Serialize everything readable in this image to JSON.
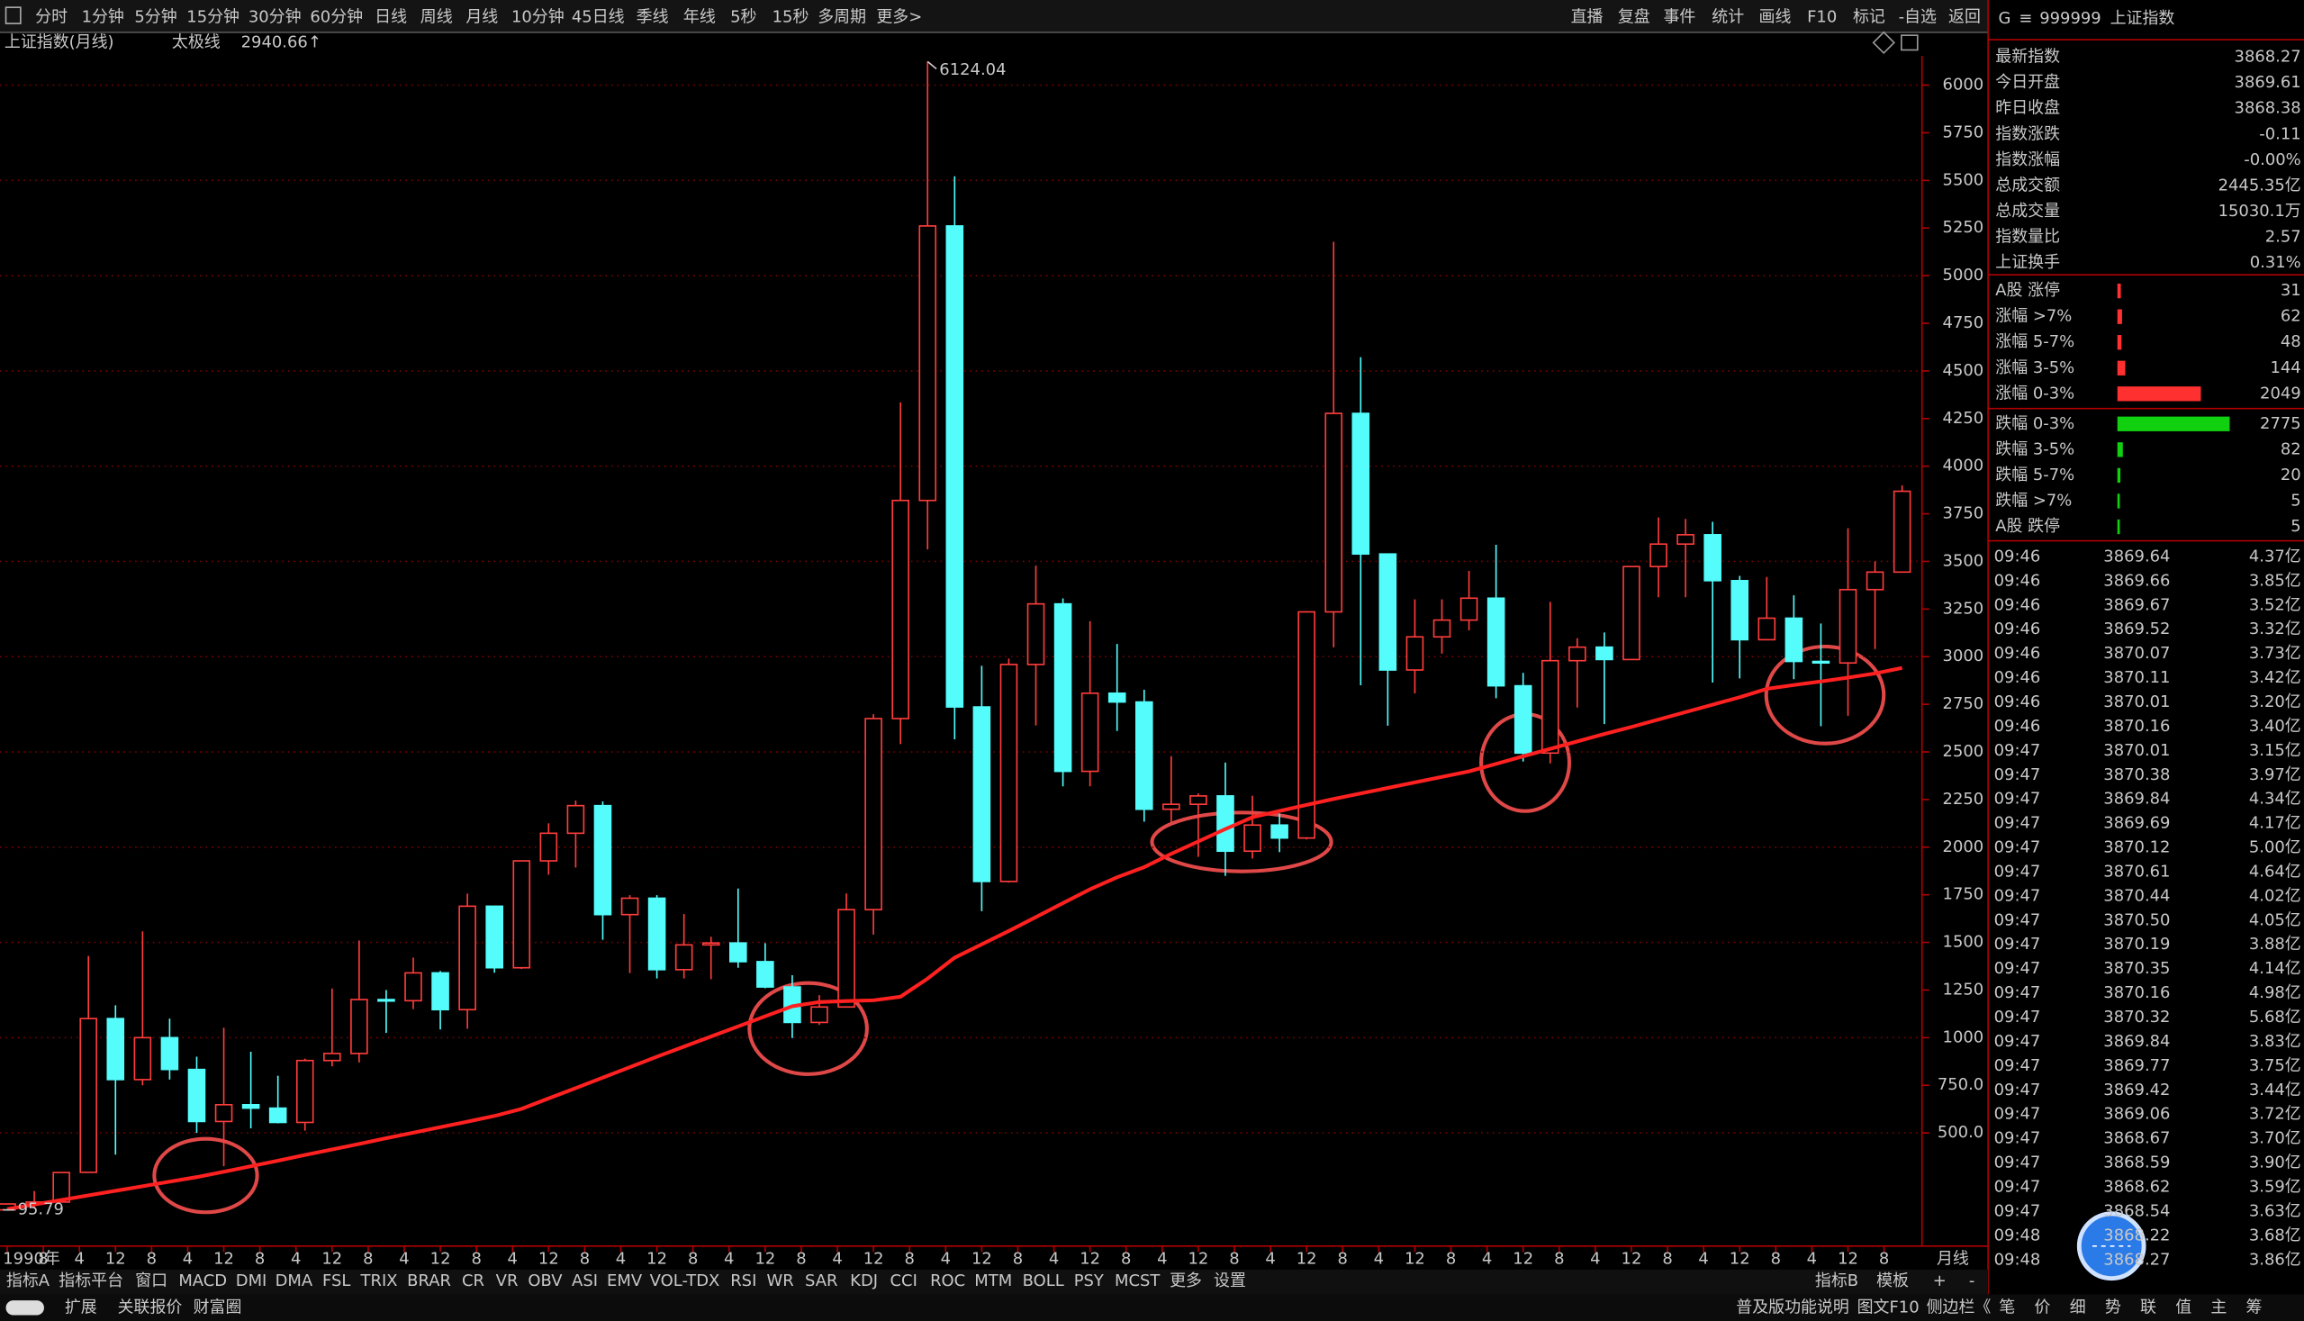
{
  "toolbar": {
    "periods": [
      "分时",
      "1分钟",
      "5分钟",
      "15分钟",
      "30分钟",
      "60分钟",
      "日线",
      "周线",
      "月线",
      "10分钟",
      "45日线",
      "季线",
      "年线",
      "5秒",
      "15秒",
      "多周期",
      "更多>"
    ],
    "actions": [
      "直播",
      "复盘",
      "事件",
      "统计",
      "画线",
      "F10",
      "标记",
      "-自选",
      "返回"
    ]
  },
  "chart_data": {
    "type": "candlestick",
    "title": "上证指数(月线)",
    "period_label": "月线",
    "up_color": "#ff3c3c",
    "down_color": "#54fcfc",
    "x": [
      11,
      17,
      23,
      29,
      35,
      41,
      47,
      53,
      59,
      65,
      71,
      77,
      83,
      89,
      95,
      101,
      107,
      113,
      119,
      125,
      131,
      137,
      143,
      149,
      155,
      161,
      167,
      173,
      179,
      185,
      191,
      197,
      203,
      209,
      215,
      221,
      227,
      233,
      239,
      245,
      251,
      257,
      263,
      269,
      275,
      281,
      287,
      293,
      299,
      305,
      311,
      317,
      323,
      329,
      335,
      341,
      347,
      353,
      359,
      365,
      371,
      377,
      383,
      389,
      395,
      401,
      407,
      413,
      419,
      425,
      431
    ],
    "open": [
      96,
      127,
      137,
      293,
      1100,
      780,
      1000,
      833,
      560,
      648,
      630,
      555,
      880,
      917,
      1200,
      1194,
      1340,
      1147,
      1690,
      1367,
      1928,
      2073,
      2218,
      1646,
      1732,
      1357,
      1487,
      1497,
      1399,
      1266,
      1080,
      1161,
      1672,
      2675,
      3820,
      5261,
      2736,
      1820,
      2959,
      3277,
      2398,
      2808,
      2762,
      2199,
      2225,
      2269,
      1979,
      2116,
      2048,
      3235,
      4277,
      3539,
      2930,
      3104,
      3192,
      3307,
      2847,
      2494,
      2979,
      3050,
      2985,
      3473,
      3591,
      3640,
      3399,
      3089,
      3202,
      2975,
      2967,
      3352,
      3444
    ],
    "high": [
      128,
      195,
      292,
      1429,
      1170,
      1558,
      1100,
      900,
      1052,
      926,
      800,
      890,
      1258,
      1510,
      1250,
      1420,
      1350,
      1756,
      1690,
      1930,
      2125,
      2245,
      2240,
      1748,
      1748,
      1649,
      1530,
      1783,
      1496,
      1328,
      1223,
      1757,
      2698,
      4335,
      6124.04,
      5522,
      2952,
      2990,
      3478,
      3306,
      3186,
      3067,
      2826,
      2478,
      2282,
      2444,
      2270,
      2177,
      3239,
      5178,
      4572,
      3539,
      3301,
      3301,
      3450,
      3587,
      2915,
      3288,
      3097,
      3127,
      3474,
      3731,
      3723,
      3708,
      3424,
      3418,
      3322,
      3174,
      3674,
      3500,
      3899
    ],
    "low": [
      95.79,
      105,
      134,
      292,
      386,
      750,
      780,
      500,
      325,
      524,
      550,
      512,
      850,
      870,
      1025,
      1150,
      1043,
      1047,
      1341,
      1361,
      1855,
      1893,
      1514,
      1339,
      1311,
      1311,
      1307,
      1367,
      1259,
      998,
      1067,
      1161,
      1541,
      2541,
      3563,
      2566,
      1664,
      1814,
      2639,
      2319,
      2319,
      2610,
      2134,
      2132,
      1949,
      1849,
      1940,
      1974,
      2041,
      3049,
      2850,
      2638,
      2807,
      3016,
      3138,
      2782,
      2449,
      2440,
      2733,
      2646,
      2984,
      3312,
      3312,
      2864,
      2886,
      3089,
      2882,
      2635,
      2690,
      3040,
      3444
    ],
    "close": [
      127,
      137,
      292,
      1100,
      780,
      1000,
      833,
      560,
      648,
      630,
      555,
      880,
      917,
      1200,
      1194,
      1340,
      1147,
      1690,
      1367,
      1928,
      2073,
      2218,
      1646,
      1732,
      1357,
      1487,
      1497,
      1399,
      1266,
      1080,
      1161,
      1672,
      2675,
      3820,
      5261,
      2736,
      1820,
      2959,
      3277,
      2398,
      2808,
      2762,
      2199,
      2225,
      2269,
      1979,
      2116,
      2048,
      3235,
      4277,
      3539,
      2930,
      3104,
      3192,
      3307,
      2847,
      2494,
      2979,
      3050,
      2985,
      3473,
      3591,
      3640,
      3399,
      3089,
      3202,
      2975,
      2967,
      3352,
      3444,
      3868.27
    ],
    "series": [
      {
        "name": "太极线",
        "color": "#ff2020",
        "last_label": "2940.66↑",
        "values": [
          100,
          124,
          148,
          172,
          196,
          220,
          244,
          268,
          296,
          325,
          354,
          384,
          413,
          442,
          472,
          501,
          530,
          559,
          589,
          626,
          681,
          735,
          790,
          845,
          900,
          953,
          1006,
          1059,
          1112,
          1165,
          1187,
          1192,
          1196,
          1215,
          1310,
          1420,
          1490,
          1560,
          1633,
          1706,
          1779,
          1842,
          1895,
          1965,
          2030,
          2095,
          2157,
          2190,
          2222,
          2253,
          2282,
          2311,
          2340,
          2369,
          2398,
          2437,
          2477,
          2516,
          2555,
          2594,
          2631,
          2670,
          2709,
          2748,
          2787,
          2831,
          2851,
          2870,
          2890,
          2912,
          2940.66
        ]
      }
    ],
    "xlim": [
      9.4,
      435.4
    ],
    "ylim": [
      -94,
      6154
    ],
    "yticks": [
      {
        "value": 500,
        "label": "500.0"
      },
      {
        "value": 750,
        "label": "750.0"
      },
      1000,
      1250,
      1500,
      1750,
      2000,
      2250,
      2500,
      2750,
      3000,
      3250,
      3500,
      3750,
      4000,
      4250,
      4500,
      4750,
      5000,
      5250,
      5500,
      5750,
      6000
    ],
    "xticks": [
      {
        "value": 11,
        "label": "1990年"
      },
      {
        "value": 19,
        "label": "8"
      },
      {
        "value": 27,
        "label": "4"
      },
      {
        "value": 35,
        "label": "12"
      },
      {
        "value": 43,
        "label": "8"
      },
      {
        "value": 51,
        "label": "4"
      },
      {
        "value": 59,
        "label": "12"
      },
      {
        "value": 67,
        "label": "8"
      },
      {
        "value": 75,
        "label": "4"
      },
      {
        "value": 83,
        "label": "12"
      },
      {
        "value": 91,
        "label": "8"
      },
      {
        "value": 99,
        "label": "4"
      },
      {
        "value": 107,
        "label": "12"
      },
      {
        "value": 115,
        "label": "8"
      },
      {
        "value": 123,
        "label": "4"
      },
      {
        "value": 131,
        "label": "12"
      },
      {
        "value": 139,
        "label": "8"
      },
      {
        "value": 147,
        "label": "4"
      },
      {
        "value": 155,
        "label": "12"
      },
      {
        "value": 163,
        "label": "8"
      },
      {
        "value": 171,
        "label": "4"
      },
      {
        "value": 179,
        "label": "12"
      },
      {
        "value": 187,
        "label": "8"
      },
      {
        "value": 195,
        "label": "4"
      },
      {
        "value": 203,
        "label": "12"
      },
      {
        "value": 211,
        "label": "8"
      },
      {
        "value": 219,
        "label": "4"
      },
      {
        "value": 227,
        "label": "12"
      },
      {
        "value": 235,
        "label": "8"
      },
      {
        "value": 243,
        "label": "4"
      },
      {
        "value": 251,
        "label": "12"
      },
      {
        "value": 259,
        "label": "8"
      },
      {
        "value": 267,
        "label": "4"
      },
      {
        "value": 275,
        "label": "12"
      },
      {
        "value": 283,
        "label": "8"
      },
      {
        "value": 291,
        "label": "4"
      },
      {
        "value": 299,
        "label": "12"
      },
      {
        "value": 307,
        "label": "8"
      },
      {
        "value": 315,
        "label": "4"
      },
      {
        "value": 323,
        "label": "12"
      },
      {
        "value": 331,
        "label": "8"
      },
      {
        "value": 339,
        "label": "4"
      },
      {
        "value": 347,
        "label": "12"
      },
      {
        "value": 355,
        "label": "8"
      },
      {
        "value": 363,
        "label": "4"
      },
      {
        "value": 371,
        "label": "12"
      },
      {
        "value": 379,
        "label": "8"
      },
      {
        "value": 387,
        "label": "4"
      },
      {
        "value": 395,
        "label": "12"
      },
      {
        "value": 403,
        "label": "8"
      },
      {
        "value": 411,
        "label": "4"
      },
      {
        "value": 419,
        "label": "12"
      },
      {
        "value": 427,
        "label": "8"
      }
    ],
    "grid": true
  },
  "quote": {
    "badge": "G",
    "code": "999999",
    "name": "上证指数",
    "stats": [
      {
        "label": "最新指数",
        "value": "3868.27",
        "color": "#3cff3c"
      },
      {
        "label": "今日开盘",
        "value": "3869.61",
        "color": "#ff4040"
      },
      {
        "label": "昨日收盘",
        "value": "3868.38",
        "color": "#ffffff"
      },
      {
        "label": "指数涨跌",
        "value": "-0.11",
        "color": "#3cff3c"
      },
      {
        "label": "指数涨幅",
        "value": "-0.00%",
        "color": "#3cff3c"
      },
      {
        "label": "总成交额",
        "value": "2445.35亿",
        "color": "#ffff50"
      },
      {
        "label": "总成交量",
        "value": "15030.1万",
        "color": "#ffff50"
      },
      {
        "label": "指数量比",
        "value": "2.57",
        "color": "#ff4040"
      },
      {
        "label": "上证换手",
        "value": "0.31%",
        "color": "#ffffff"
      }
    ],
    "breadth": [
      {
        "label": "A股 涨停",
        "count": 31,
        "color": "#ff3030"
      },
      {
        "label": "涨幅 >7%",
        "count": 62,
        "color": "#ff3030"
      },
      {
        "label": "涨幅 5-7%",
        "count": 48,
        "color": "#ff3030"
      },
      {
        "label": "涨幅 3-5%",
        "count": 144,
        "color": "#ff3030"
      },
      {
        "label": "涨幅 0-3%",
        "count": 2049,
        "color": "#ff3030"
      },
      {
        "label": "跌幅 0-3%",
        "count": 2775,
        "color": "#10d010"
      },
      {
        "label": "跌幅 3-5%",
        "count": 82,
        "color": "#10d010"
      },
      {
        "label": "跌幅 5-7%",
        "count": 20,
        "color": "#10d010"
      },
      {
        "label": "跌幅 >7%",
        "count": 5,
        "color": "#10d010"
      },
      {
        "label": "A股 跌停",
        "count": 5,
        "color": "#10d010"
      }
    ],
    "ticks": [
      [
        "09:46",
        "3869.64",
        "4.37亿"
      ],
      [
        "09:46",
        "3869.66",
        "3.85亿"
      ],
      [
        "09:46",
        "3869.67",
        "3.52亿"
      ],
      [
        "09:46",
        "3869.52",
        "3.32亿"
      ],
      [
        "09:46",
        "3870.07",
        "3.73亿"
      ],
      [
        "09:46",
        "3870.11",
        "3.42亿"
      ],
      [
        "09:46",
        "3870.01",
        "3.20亿"
      ],
      [
        "09:46",
        "3870.16",
        "3.40亿"
      ],
      [
        "09:47",
        "3870.01",
        "3.15亿"
      ],
      [
        "09:47",
        "3870.38",
        "3.97亿"
      ],
      [
        "09:47",
        "3869.84",
        "4.34亿"
      ],
      [
        "09:47",
        "3869.69",
        "4.17亿"
      ],
      [
        "09:47",
        "3870.12",
        "5.00亿"
      ],
      [
        "09:47",
        "3870.61",
        "4.64亿"
      ],
      [
        "09:47",
        "3870.44",
        "4.02亿"
      ],
      [
        "09:47",
        "3870.50",
        "4.05亿"
      ],
      [
        "09:47",
        "3870.19",
        "3.88亿"
      ],
      [
        "09:47",
        "3870.35",
        "4.14亿"
      ],
      [
        "09:47",
        "3870.16",
        "4.98亿"
      ],
      [
        "09:47",
        "3870.32",
        "5.68亿"
      ],
      [
        "09:47",
        "3869.84",
        "3.83亿"
      ],
      [
        "09:47",
        "3869.77",
        "3.75亿"
      ],
      [
        "09:47",
        "3869.42",
        "3.44亿"
      ],
      [
        "09:47",
        "3869.06",
        "3.72亿"
      ],
      [
        "09:47",
        "3868.67",
        "3.70亿"
      ],
      [
        "09:47",
        "3868.59",
        "3.90亿"
      ],
      [
        "09:47",
        "3868.62",
        "3.59亿"
      ],
      [
        "09:47",
        "3868.54",
        "3.63亿"
      ],
      [
        "09:48",
        "3868.22",
        "3.68亿"
      ],
      [
        "09:48",
        "3868.27",
        "3.86亿"
      ]
    ],
    "tabs": [
      "笔",
      "价",
      "细",
      "势",
      "联",
      "值",
      "主",
      "筹"
    ]
  },
  "bottom": {
    "indicators": [
      "指标A",
      "指标平台",
      "窗口",
      "MACD",
      "DMI",
      "DMA",
      "FSL",
      "TRIX",
      "BRAR",
      "CR",
      "VR",
      "OBV",
      "ASI",
      "EMV",
      "VOL-TDX",
      "RSI",
      "WR",
      "SAR",
      "KDJ",
      "CCI",
      "ROC",
      "MTM",
      "BOLL",
      "PSY",
      "MCST",
      "更多",
      "设置"
    ],
    "right": [
      "指标B",
      "模板",
      "+",
      "-"
    ],
    "row2_left": [
      "扩展",
      "关联报价",
      "财富圈"
    ],
    "row2_right": [
      "普及版功能说明",
      "图文F10",
      "侧边栏《"
    ]
  }
}
